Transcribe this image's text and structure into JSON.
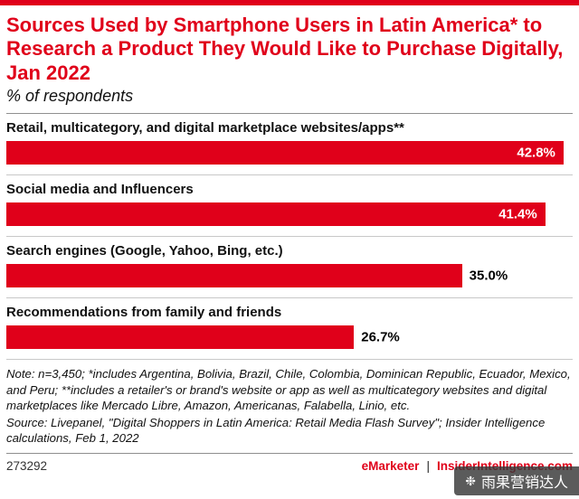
{
  "page": {
    "accent_color": "#e0001a"
  },
  "chart_data": {
    "type": "bar",
    "orientation": "horizontal",
    "title": "Sources Used by Smartphone Users in Latin America* to Research a Product They Would Like to Purchase Digitally, Jan 2022",
    "subtitle": "% of respondents",
    "categories": [
      "Retail, multicategory, and digital marketplace websites/apps**",
      "Social media and Influencers",
      "Search engines (Google, Yahoo, Bing, etc.)",
      "Recommendations from family and friends"
    ],
    "values": [
      42.8,
      41.4,
      35.0,
      26.7
    ],
    "value_labels": [
      "42.8%",
      "41.4%",
      "35.0%",
      "26.7%"
    ],
    "xlim": [
      0,
      43.5
    ],
    "bar_color": "#e0001a",
    "grid": false,
    "legend": "none"
  },
  "notes": {
    "note": "Note: n=3,450; *includes Argentina, Bolivia, Brazil, Chile, Colombia, Dominican Republic, Ecuador, Mexico, and Peru; **includes a retailer's or brand's website or app as well as multicategory websites and digital marketplaces like Mercado Libre, Amazon, Americanas, Falabella, Linio, etc.",
    "source": "Source: Livepanel, \"Digital Shoppers in Latin America: Retail Media Flash Survey\"; Insider Intelligence calculations, Feb 1, 2022"
  },
  "footer": {
    "chart_id": "273292",
    "brand": "eMarketer",
    "separator": "|",
    "site": "InsiderIntelligence.com"
  },
  "watermark": {
    "icon": "❉",
    "text": "雨果营销达人"
  }
}
